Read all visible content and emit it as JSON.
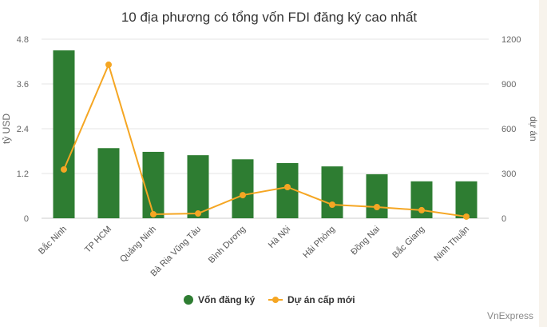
{
  "chart_data": {
    "type": "bar+line",
    "title": "10 địa phương có tổng vốn FDI đăng ký cao nhất",
    "categories": [
      "Bắc Ninh",
      "TP HCM",
      "Quảng Ninh",
      "Bà Rịa Vũng Tàu",
      "Bình Dương",
      "Hà Nội",
      "Hải Phòng",
      "Đồng Nai",
      "Bắc Giang",
      "Ninh Thuận"
    ],
    "series": [
      {
        "name": "Vốn đăng ký",
        "type": "bar",
        "axis": "left",
        "color": "#2e7d32",
        "values": [
          4.5,
          1.88,
          1.78,
          1.69,
          1.58,
          1.48,
          1.39,
          1.18,
          0.99,
          0.99
        ]
      },
      {
        "name": "Dự án cấp mới",
        "type": "line",
        "axis": "right",
        "color": "#f5a623",
        "values": [
          327,
          1029,
          27,
          32,
          155,
          209,
          91,
          75,
          54,
          11
        ]
      }
    ],
    "ylabel": "tỷ USD",
    "ylim": [
      0,
      4.8
    ],
    "yticks": [
      "0",
      "1.2",
      "2.4",
      "3.6",
      "4.8"
    ],
    "y2label": "dự án",
    "y2lim": [
      0,
      1200
    ],
    "y2ticks": [
      "0",
      "300",
      "600",
      "900",
      "1200"
    ],
    "grid": true,
    "legend": "bottom"
  },
  "source": "VnExpress"
}
